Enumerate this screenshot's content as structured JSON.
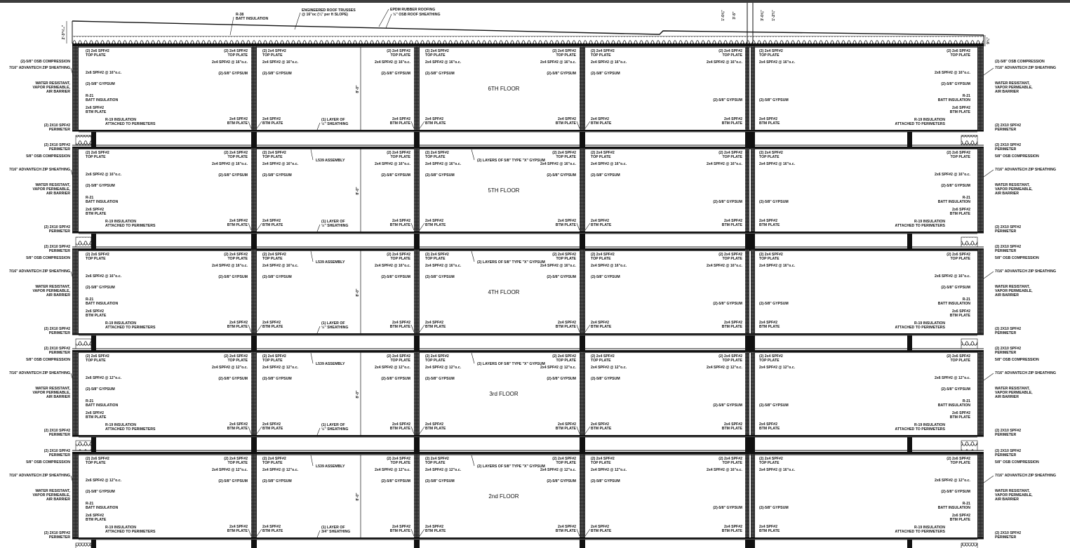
{
  "roof": {
    "r38": [
      "R-38",
      "BATT INSULATION"
    ],
    "trusses": [
      "ENGINEERED ROOF TRUSSES",
      "@ 16\"oc (¼\" per ft SLOPE)"
    ],
    "epdm": "EPDM RUBBER ROOFING",
    "osb": "½\" OSB ROOF SHEATHING",
    "dim_left": "2'-3¹⁵⁄₁₆\"",
    "dim_right": "9¾\"",
    "dims_center": [
      "1'-0⅝\"",
      "3'-5\"",
      "3'-0⅝\"",
      "1'-2¾\""
    ]
  },
  "labels": {
    "osb_compression_2": "(2)-5/8\" OSB COMPRESSION",
    "osb_compression": "5/8\" OSB COMPRESSION",
    "zip": "7/16\" ADVANTECH ZIP SHEATHING",
    "barrier": [
      "WATER RESISTANT,",
      "VAPOR PERMEABLE,",
      "AIR BARRIER"
    ],
    "perimeter": [
      "(2) 2X10 SPF#2",
      "PERIMETER"
    ],
    "top_plate_2x6": [
      "(2) 2x6 SPF#2",
      "TOP PLATE"
    ],
    "top_plate_2x4": [
      "(2) 2x4 SPF#2",
      "TOP PLATE"
    ],
    "gypsum": "(2)-5/8\" GYPSUM",
    "r21": [
      "R-21",
      "BATT INSULATION"
    ],
    "btm_2x6": [
      "2x6 SPF#2",
      "BTM PLATE"
    ],
    "btm_2x4": [
      "2x4 SPF#2",
      "BTM PLATE"
    ],
    "r19": [
      "R-19 INSULATION",
      "ATTACHED TO PERIMETERS"
    ],
    "l539": "L539 ASSEMBLY",
    "layers_x": "(2) LAYERS OF 5/8\" TYPE \"X\" GYPSUM",
    "height": "8'-0\""
  },
  "floors": [
    {
      "name": "6TH FLOOR",
      "stud6": "2x6 SPF#2 @ 16\"o.c.",
      "stud4": "2x4 SPF#2 @ 16\"o.c.",
      "stud4_right": "2x4 SPF#2 @ 16\"o.c.",
      "sheathing": [
        "(1) LAYER OF",
        "½\" SHEATHING"
      ],
      "ceiling_notes": false
    },
    {
      "name": "5TH FLOOR",
      "stud6": "2x6 SPF#2 @ 16\"o.c.",
      "stud4": "2x4 SPF#2 @ 16\"o.c.",
      "stud4_right": "2x4 SPF#2 @ 16\"o.c.",
      "sheathing": [
        "(1) LAYER OF",
        "½\" SHEATHING"
      ],
      "ceiling_notes": true
    },
    {
      "name": "4TH FLOOR",
      "stud6": "2x6 SPF#2 @ 16\"o.c.",
      "stud4": "2x4 SPF#2 @ 16\"o.c.",
      "stud4_right": "2x4 SPF#2 @ 16\"o.c.",
      "sheathing": [
        "(1) LAYER OF",
        "½\" SHEATHING"
      ],
      "ceiling_notes": true
    },
    {
      "name": "3rd FLOOR",
      "stud6": "2x6 SPF#2 @ 12\"o.c.",
      "stud4": "2x4 SPF#2 @ 12\"o.c.",
      "stud4_right": "2x4 SPF#2 @ 12\"o.c.",
      "sheathing": [
        "(1) LAYER OF",
        "½\" SHEATHING"
      ],
      "ceiling_notes": true
    },
    {
      "name": "2nd FLOOR",
      "stud6": "2x6 SPF#2 @ 12\"o.c.",
      "stud4": "2x4 SPF#2 @ 12\"o.c.",
      "stud4_right": "2x4 SPF#2 @ 16\"o.c.",
      "sheathing": [
        "(1) LAYER OF",
        "3/4\" SHEATHING"
      ],
      "ceiling_notes": true
    }
  ],
  "colors": {
    "line": "#111111",
    "topbar": "#3c3c3c",
    "slab": "#8a8a8a"
  }
}
